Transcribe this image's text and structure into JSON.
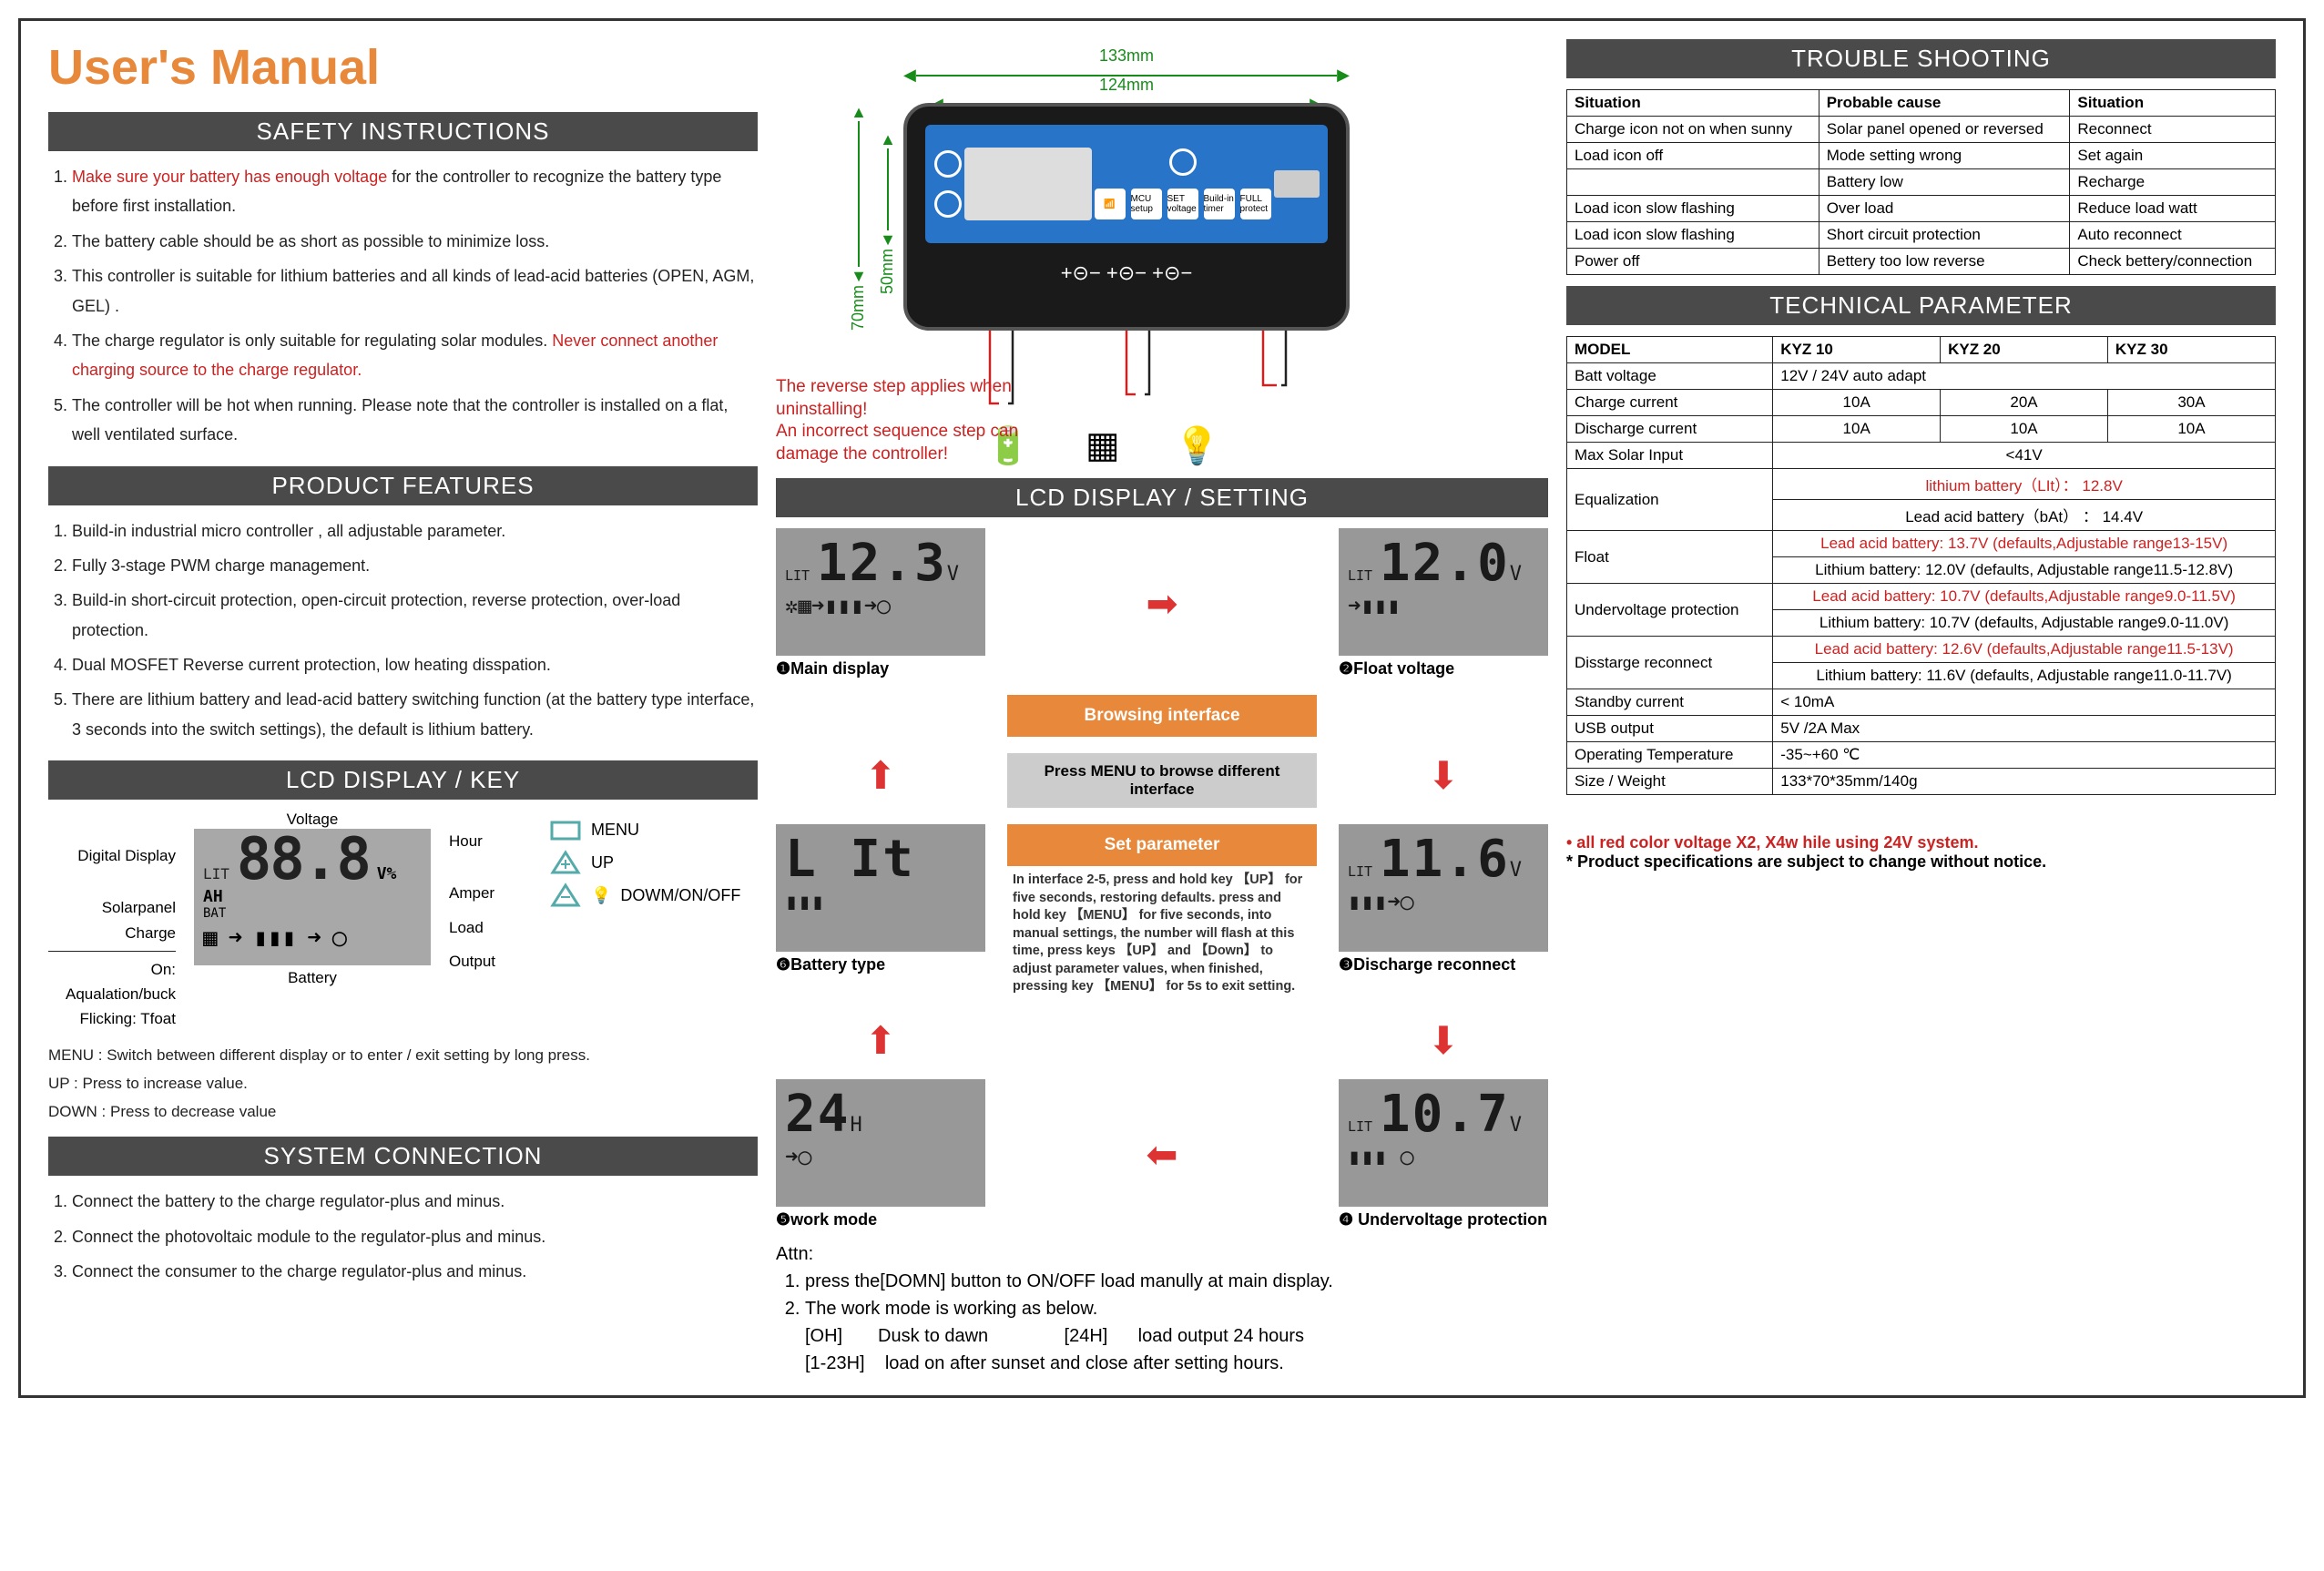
{
  "title": "User's Manual",
  "sections": {
    "safety_header": "SAFETY INSTRUCTIONS",
    "features_header": "PRODUCT FEATURES",
    "lcdkey_header": "LCD DISPLAY / KEY",
    "syscon_header": "SYSTEM CONNECTION",
    "lcdset_header": "LCD DISPLAY / SETTING",
    "trouble_header": "TROUBLE SHOOTING",
    "tech_header": "TECHNICAL PARAMETER"
  },
  "safety": {
    "i1a": "Make sure your battery has enough voltage",
    "i1b": " for the controller to recognize the battery type before first installation.",
    "i2": "The battery cable should be as short as possible to minimize loss.",
    "i3": "This controller is suitable for lithium batteries and all kinds of lead-acid batteries (OPEN, AGM, GEL) .",
    "i4a": "The charge regulator is only suitable for regulating solar modules. ",
    "i4b": "Never connect another charging source to the charge regulator.",
    "i5": "The controller will be hot when running. Please note that the controller is installed on a flat, well ventilated surface."
  },
  "features": {
    "f1": "Build-in industrial micro controller , all adjustable parameter.",
    "f2": "Fully 3-stage PWM charge management.",
    "f3": "Build-in short-circuit protection, open-circuit protection, reverse protection, over-load protection.",
    "f4": "Dual MOSFET Reverse current protection, low heating disspation.",
    "f5": "There are lithium battery and lead-acid battery switching function (at the battery type interface, 3 seconds into the switch settings), the default is lithium battery."
  },
  "lcdkey": {
    "labels": {
      "digital": "Digital Display",
      "voltage": "Voltage",
      "hour": "Hour",
      "solarpanel": "Solarpanel",
      "charge": "Charge",
      "amper": "Amper",
      "load": "Load",
      "aqua": "On: Aqualation/buck",
      "flick": "Flicking: Tfoat",
      "battery": "Battery",
      "output": "Output"
    },
    "lcd": {
      "lit": "LIT",
      "bat": "BAT",
      "digits": "88.8",
      "v": "V%",
      "ah": "AH"
    },
    "keys": {
      "menu": "MENU",
      "up": "UP",
      "down": "DOWM/ON/OFF"
    },
    "notes": {
      "menu": "MENU :  Switch between different display or to enter / exit setting by long press.",
      "up": "UP :       Press to increase value.",
      "down": "DOWN : Press to decrease value"
    }
  },
  "syscon": {
    "s1": "Connect the battery to the charge regulator-plus and minus.",
    "s2": "Connect the photovoltaic module to the regulator-plus and minus.",
    "s3": "Connect the consumer to the charge regulator-plus and minus."
  },
  "diagram": {
    "dim_w1": "133mm",
    "dim_w2": "124mm",
    "dim_h1": "70mm",
    "dim_h2": "50mm",
    "warn1": "The reverse step applies when uninstalling!",
    "warn2": "An incorrect sequence step can damage the controller!",
    "btnlabels": {
      "b1": "MCU setup",
      "b2": "SET voltage",
      "b3": "Build-in timer",
      "b4": "FULL protect"
    },
    "term": "+⊝−  +⊝−  +⊝−"
  },
  "lcdset": {
    "browsing": "Browsing interface",
    "pressmenu": "Press MENU to browse different interface",
    "setparam": "Set parameter",
    "instr": "In interface 2-5, press and hold key 【UP】 for five seconds, restoring defaults. press and hold  key 【MENU】 for five seconds, into manual settings, the number will flash at this time, press keys 【UP】 and 【Down】 to adjust  parameter values, when finished, pressing key 【MENU】 for 5s to exit  setting.",
    "cells": {
      "c1": {
        "lit": "LIT",
        "val": "12.3",
        "unit": "V",
        "label": "❶Main display"
      },
      "c2": {
        "lit": "LIT",
        "val": "12.0",
        "unit": "V",
        "label": "❷Float voltage"
      },
      "c3": {
        "lit": "LIT",
        "val": "11.6",
        "unit": "V",
        "label": "❸Discharge reconnect"
      },
      "c4": {
        "lit": "LIT",
        "val": "10.7",
        "unit": "V",
        "label": "❹ Undervoltage protection"
      },
      "c5": {
        "lit": "",
        "val": "24",
        "unit": "H",
        "label": "❺work mode"
      },
      "c6": {
        "lit": "",
        "val": "L It",
        "unit": "",
        "label": "❻Battery type"
      }
    },
    "attn_head": "Attn:",
    "attn1": "press the[DOMN] button to ON/OFF load manully at main display.",
    "attn2": "The work mode is working as below.",
    "attn2a": "[OH]       Dusk to dawn               [24H]      load output 24 hours",
    "attn2b": "[1-23H]    load on after sunset and close after setting hours."
  },
  "trouble": {
    "cols": [
      "Situation",
      "Probable cause",
      "Situation"
    ],
    "rows": [
      [
        "Charge icon not on when sunny",
        "Solar panel opened or reversed",
        "Reconnect"
      ],
      [
        "Load icon off",
        "Mode setting wrong",
        "Set again"
      ],
      [
        "",
        "Battery low",
        "Recharge"
      ],
      [
        "Load icon slow flashing",
        "Over load",
        "Reduce load watt"
      ],
      [
        "Load icon slow flashing",
        "Short circuit protection",
        "Auto reconnect"
      ],
      [
        "Power off",
        "Bettery too low reverse",
        "Check bettery/connection"
      ]
    ]
  },
  "tech": {
    "cols": [
      "MODEL",
      "KYZ 10",
      "KYZ 20",
      "KYZ 30"
    ],
    "rows": [
      {
        "label": "Batt voltage",
        "span": "12V / 24V auto adapt"
      },
      {
        "label": "Charge current",
        "vals": [
          "10A",
          "20A",
          "30A"
        ]
      },
      {
        "label": "Discharge current",
        "vals": [
          "10A",
          "10A",
          "10A"
        ]
      },
      {
        "label": "Max Solar Input",
        "span_center": "<41V"
      },
      {
        "label": "Equalization",
        "dual": [
          {
            "text": "lithium battery（LIt）： 12.8V",
            "red": true
          },
          {
            "text": "Lead acid battery（bAt） ： 14.4V"
          }
        ]
      },
      {
        "label": "Float",
        "dual": [
          {
            "text": "Lead acid battery: 13.7V (defaults,Adjustable range13-15V)",
            "red": true
          },
          {
            "text": "Lithium battery: 12.0V (defaults, Adjustable range11.5-12.8V)"
          }
        ]
      },
      {
        "label": "Undervoltage protection",
        "dual": [
          {
            "text": "Lead acid battery: 10.7V (defaults,Adjustable range9.0-11.5V)",
            "red": true
          },
          {
            "text": "Lithium battery: 10.7V (defaults, Adjustable range9.0-11.0V)"
          }
        ]
      },
      {
        "label": "Disstarge reconnect",
        "dual": [
          {
            "text": "Lead acid battery: 12.6V (defaults,Adjustable range11.5-13V)",
            "red": true
          },
          {
            "text": "Lithium battery: 11.6V (defaults, Adjustable range11.0-11.7V)"
          }
        ]
      },
      {
        "label": "Standby current",
        "span": "< 10mA"
      },
      {
        "label": "USB output",
        "span": "5V /2A Max"
      },
      {
        "label": "Operating Temperature",
        "span": "-35~+60 ℃"
      },
      {
        "label": "Size / Weight",
        "span": "133*70*35mm/140g"
      }
    ]
  },
  "footnotes": {
    "f1": "• all red color voltage X2, X4w hile using 24V system.",
    "f2": "* Product specifications are subject to change without notice."
  },
  "colors": {
    "accent_orange": "#e8883a",
    "header_grey": "#4a4a4a",
    "red": "#cc2222",
    "green": "#188c1a",
    "device_blue": "#2874c8",
    "lcd_grey": "#989898"
  }
}
